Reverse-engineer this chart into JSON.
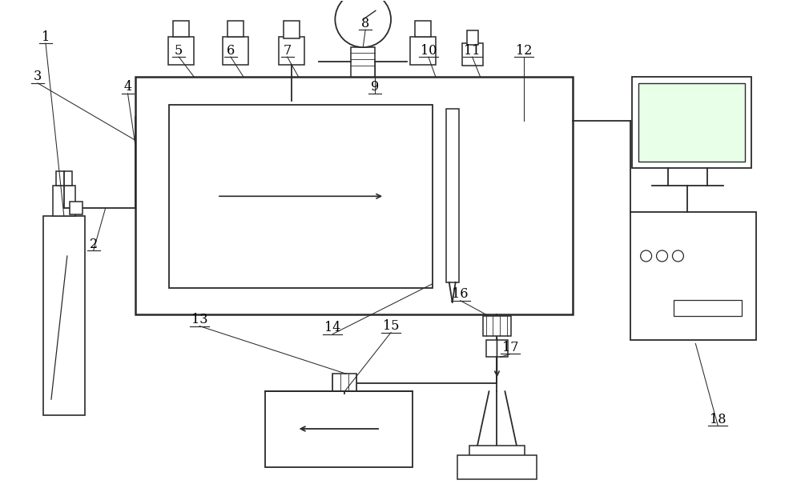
{
  "bg_color": "#ffffff",
  "line_color": "#2a2a2a",
  "lw": 1.3,
  "fig_width": 10.0,
  "fig_height": 6.25
}
